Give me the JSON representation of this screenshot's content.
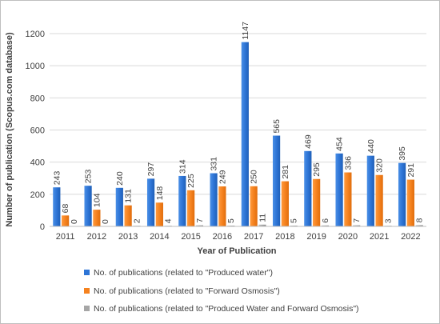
{
  "chart_data": {
    "type": "bar",
    "title": "",
    "xlabel": "Year of Publication",
    "ylabel": "Number of publication (Scopus.com database)",
    "ylim": [
      0,
      1200
    ],
    "yticks": [
      0,
      200,
      400,
      600,
      800,
      1000,
      1200
    ],
    "grid": true,
    "legend_position": "bottom",
    "categories": [
      "2011",
      "2012",
      "2013",
      "2014",
      "2015",
      "2016",
      "2017",
      "2018",
      "2019",
      "2020",
      "2021",
      "2022"
    ],
    "series": [
      {
        "name": "No. of publications (related to \"Produced water\")",
        "color": "#2e75d6",
        "values": [
          243,
          253,
          240,
          297,
          314,
          331,
          1147,
          565,
          469,
          454,
          440,
          395
        ]
      },
      {
        "name": "No. of publications (related to \"Forward Osmosis\")",
        "color": "#f5821f",
        "values": [
          68,
          104,
          131,
          148,
          225,
          249,
          250,
          281,
          295,
          336,
          320,
          291
        ]
      },
      {
        "name": "No. of publications (related to \"Produced Water and Forward Osmosis\")",
        "color": "#a6a6a6",
        "values": [
          0,
          0,
          2,
          4,
          7,
          5,
          11,
          5,
          6,
          7,
          3,
          8
        ]
      }
    ]
  }
}
